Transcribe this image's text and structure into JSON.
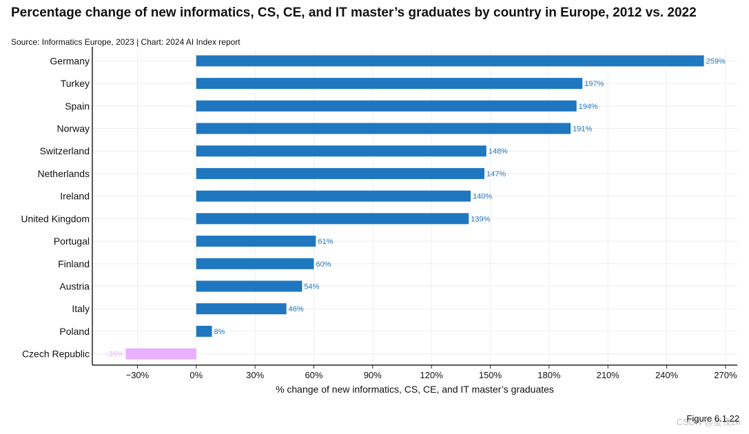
{
  "header": {
    "title": "Percentage change of new informatics, CS, CE, and IT master’s graduates by country in Europe, 2012 vs. 2022",
    "source": "Source: Informatics Europe, 2023 | Chart: 2024 AI Index report"
  },
  "footer": {
    "figure": "Figure 6.1.22",
    "watermark": "CSDN @星夜zh"
  },
  "chart_data": {
    "type": "bar",
    "orientation": "horizontal",
    "categories": [
      "Germany",
      "Turkey",
      "Spain",
      "Norway",
      "Switzerland",
      "Netherlands",
      "Ireland",
      "United Kingdom",
      "Portugal",
      "Finland",
      "Austria",
      "Italy",
      "Poland",
      "Czech Republic"
    ],
    "values": [
      259,
      197,
      194,
      191,
      148,
      147,
      140,
      139,
      61,
      60,
      54,
      46,
      8,
      -36
    ],
    "data_labels": [
      "259%",
      "197%",
      "194%",
      "191%",
      "148%",
      "147%",
      "140%",
      "139%",
      "61%",
      "60%",
      "54%",
      "46%",
      "8%",
      "-36%"
    ],
    "xlabel": "% change of new informatics, CS, CE, and IT master’s graduates",
    "xlim": [
      -53,
      276
    ],
    "xticks": [
      -30,
      0,
      30,
      60,
      90,
      120,
      150,
      180,
      210,
      240,
      270
    ],
    "xtick_labels": [
      "−30%",
      "0%",
      "30%",
      "60%",
      "90%",
      "120%",
      "150%",
      "180%",
      "210%",
      "240%",
      "270%"
    ],
    "grid": true,
    "colors": {
      "positive": "#1f77c0",
      "negative": "#e9b0ff",
      "grid": "#eeeeee",
      "axis": "#222222"
    }
  }
}
